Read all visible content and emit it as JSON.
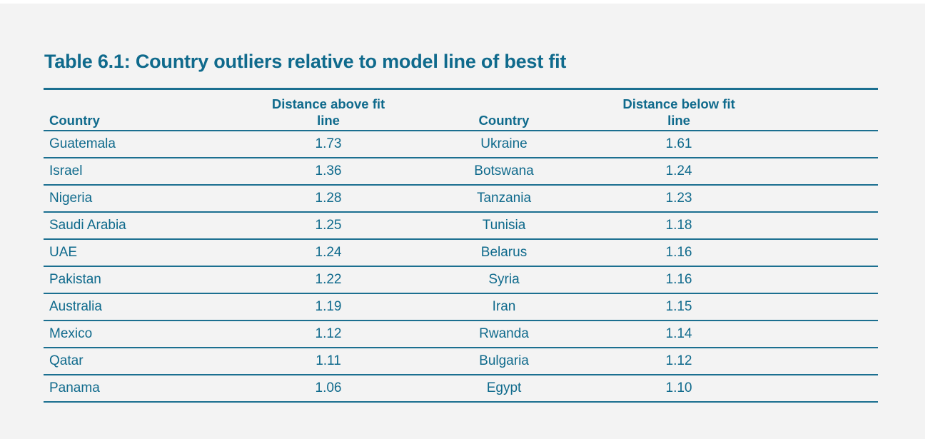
{
  "title": "Table 6.1: Country outliers relative to model line of best fit",
  "table": {
    "headers": {
      "country_above": "Country",
      "distance_above": "Distance above fit line",
      "country_below": "Country",
      "distance_below": "Distance below fit line"
    },
    "rows": [
      {
        "above_country": "Guatemala",
        "above_value": "1.73",
        "below_country": "Ukraine",
        "below_value": "1.61"
      },
      {
        "above_country": "Israel",
        "above_value": "1.36",
        "below_country": "Botswana",
        "below_value": "1.24"
      },
      {
        "above_country": "Nigeria",
        "above_value": "1.28",
        "below_country": "Tanzania",
        "below_value": "1.23"
      },
      {
        "above_country": "Saudi Arabia",
        "above_value": "1.25",
        "below_country": "Tunisia",
        "below_value": "1.18"
      },
      {
        "above_country": "UAE",
        "above_value": "1.24",
        "below_country": "Belarus",
        "below_value": "1.16"
      },
      {
        "above_country": "Pakistan",
        "above_value": "1.22",
        "below_country": "Syria",
        "below_value": "1.16"
      },
      {
        "above_country": "Australia",
        "above_value": "1.19",
        "below_country": "Iran",
        "below_value": "1.15"
      },
      {
        "above_country": "Mexico",
        "above_value": "1.12",
        "below_country": "Rwanda",
        "below_value": "1.14"
      },
      {
        "above_country": "Qatar",
        "above_value": "1.11",
        "below_country": "Bulgaria",
        "below_value": "1.12"
      },
      {
        "above_country": "Panama",
        "above_value": "1.06",
        "below_country": "Egypt",
        "below_value": "1.10"
      }
    ]
  },
  "colors": {
    "text": "#0f6a8c",
    "rule": "#1b6f90",
    "background": "#f3f3f3"
  }
}
